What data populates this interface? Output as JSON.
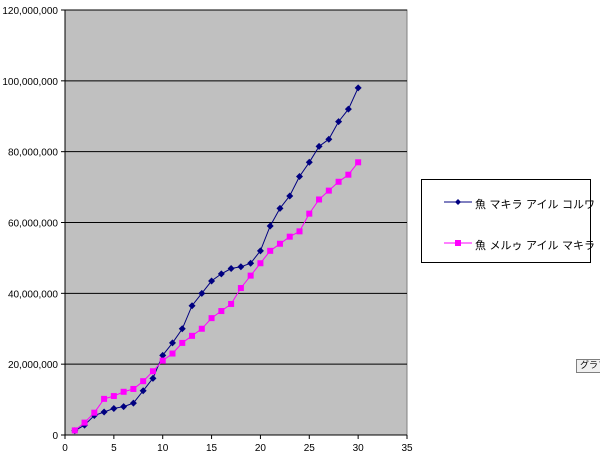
{
  "chart_data": {
    "type": "line",
    "xlim": [
      0,
      35
    ],
    "ylim": [
      0,
      120000000
    ],
    "x_ticks": [
      "0",
      "5",
      "10",
      "15",
      "20",
      "25",
      "30",
      "35"
    ],
    "y_ticks": [
      "0",
      "20,000,000",
      "40,000,000",
      "60,000,000",
      "80,000,000",
      "100,000,000",
      "120,000,000"
    ],
    "grid": "horizontal",
    "legend_position": "right",
    "series": [
      {
        "name": "魚 マキラ アイル コルワ",
        "color": "#000080",
        "marker": "diamond",
        "x": [
          1,
          2,
          3,
          4,
          5,
          6,
          7,
          8,
          9,
          10,
          11,
          12,
          13,
          14,
          15,
          16,
          17,
          18,
          19,
          20,
          21,
          22,
          23,
          24,
          25,
          26,
          27,
          28,
          29,
          30
        ],
        "values": [
          1200000,
          2800000,
          5500000,
          6500000,
          7500000,
          8000000,
          9000000,
          12500000,
          16000000,
          22500000,
          26000000,
          30000000,
          36500000,
          40000000,
          43500000,
          45500000,
          47000000,
          47500000,
          48500000,
          52000000,
          59000000,
          64000000,
          67500000,
          73000000,
          77000000,
          81500000,
          83500000,
          88500000,
          92000000,
          98000000
        ]
      },
      {
        "name": "魚 メルゥ アイル マキラ",
        "color": "#ff00ff",
        "marker": "square",
        "x": [
          1,
          2,
          3,
          4,
          5,
          6,
          7,
          8,
          9,
          10,
          11,
          12,
          13,
          14,
          15,
          16,
          17,
          18,
          19,
          20,
          21,
          22,
          23,
          24,
          25,
          26,
          27,
          28,
          29,
          30
        ],
        "values": [
          1300000,
          3500000,
          6300000,
          10200000,
          11000000,
          12200000,
          13000000,
          15200000,
          18000000,
          21000000,
          23000000,
          26000000,
          28000000,
          30000000,
          33000000,
          35000000,
          37000000,
          41500000,
          45000000,
          48500000,
          52000000,
          54000000,
          56000000,
          57500000,
          62500000,
          66500000,
          69000000,
          71500000,
          73500000,
          77000000
        ]
      }
    ]
  },
  "edge_tab": {
    "label": "グラフ"
  }
}
